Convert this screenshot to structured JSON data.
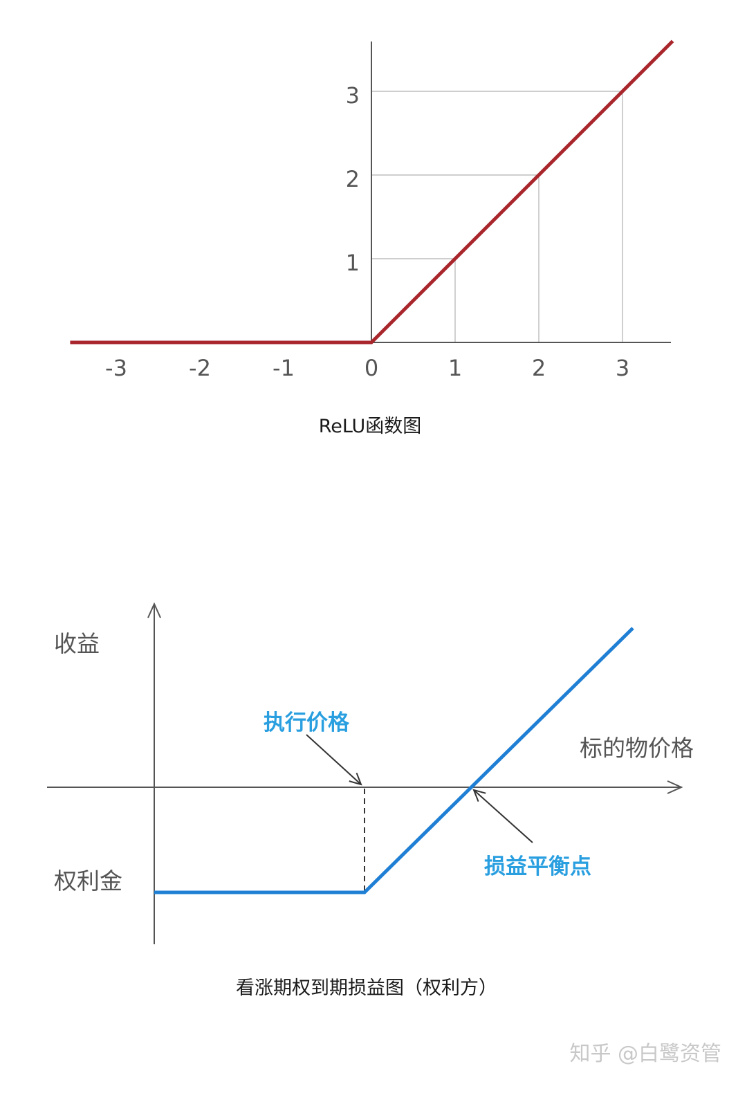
{
  "chart_data": [
    {
      "type": "line",
      "title": "ReLU函数图",
      "x_ticks": [
        "-3",
        "-2",
        "-1",
        "0",
        "1",
        "2",
        "3"
      ],
      "y_ticks": [
        "1",
        "2",
        "3"
      ],
      "xlim": [
        -3.5,
        3.6
      ],
      "ylim": [
        0,
        3.6
      ],
      "grid": "guides to points (1,1), (2,2), (3,3)",
      "series": [
        {
          "points": [
            [
              -3.6,
              0
            ],
            [
              0,
              0
            ],
            [
              3.6,
              3.6
            ]
          ],
          "color": "#a8262c"
        }
      ]
    },
    {
      "type": "line",
      "title": "看涨期权到期损益图（权利方）",
      "xlabel": "标的物价格",
      "ylabel": "收益",
      "annotations": {
        "premium": "权利金",
        "strike": "执行价格",
        "breakeven": "损益平衡点"
      },
      "series": [
        {
          "shape": "flat at premium level until strike price, then rising linearly through the breakeven point on the x-axis",
          "color": "#1f7fd4"
        }
      ]
    }
  ],
  "colors": {
    "relu_line": "#a8262c",
    "call_line": "#1f7fd4",
    "annotation_text": "#2a9fe0",
    "axis": "#555555",
    "grid": "#b0b0b0"
  },
  "watermark": "知乎 @白鹭资管"
}
